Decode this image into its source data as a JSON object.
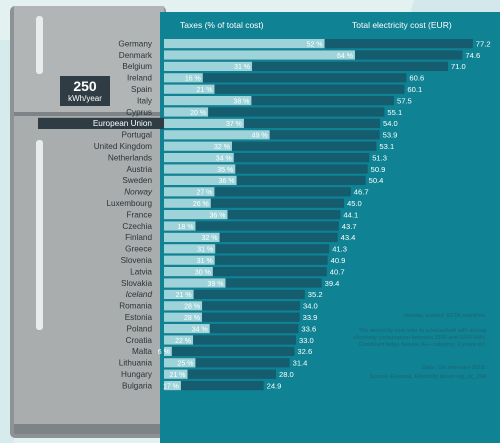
{
  "headers": {
    "taxes": "Taxes (% of total cost)",
    "cost": "Total electricity cost (EUR)"
  },
  "badge": {
    "value": "250",
    "unit": "kWh/year"
  },
  "notes": {
    "efta": "Norway, Iceland: EFTA countries.",
    "explanation": [
      "The electricity cost refer to a household with annual",
      "electricity consumption between 2500 and 5000 kWh.",
      "Combined fridge freezer, A++ category, 3 years old."
    ],
    "data": "Data : 1st semester 2019.",
    "source": "Source: Eurostat, Electricity prices nrg_pc_204"
  },
  "colors": {
    "background": "#e4f1f1",
    "panel": "#0f8293",
    "cost_bar": "#145c6e",
    "tax_bar": "#9fd3da",
    "fridge": "#a9adae",
    "highlight_row": "#2f3c43"
  },
  "chart_data": {
    "type": "bar",
    "orientation": "horizontal",
    "categories": [
      "Germany",
      "Denmark",
      "Belgium",
      "Ireland",
      "Spain",
      "Italy",
      "Cyprus",
      "European Union",
      "Portugal",
      "United Kingdom",
      "Netherlands",
      "Austria",
      "Sweden",
      "Norway",
      "Luxembourg",
      "France",
      "Czechia",
      "Finland",
      "Greece",
      "Slovenia",
      "Latvia",
      "Slovakia",
      "Iceland",
      "Romania",
      "Estonia",
      "Poland",
      "Croatia",
      "Malta",
      "Lithuania",
      "Hungary",
      "Bulgaria"
    ],
    "highlight": [
      "European Union"
    ],
    "italic": [
      "Norway",
      "Iceland"
    ],
    "series": [
      {
        "name": "Total electricity cost (EUR)",
        "values": [
          77.2,
          74.6,
          71.0,
          60.6,
          60.1,
          57.5,
          55.1,
          54.0,
          53.9,
          53.1,
          51.3,
          50.9,
          50.4,
          46.7,
          45.0,
          44.1,
          43.7,
          43.4,
          41.3,
          40.9,
          40.7,
          39.4,
          35.2,
          34.0,
          33.9,
          33.6,
          33.0,
          32.6,
          31.4,
          28.0,
          24.9
        ],
        "labels": [
          "77.2",
          "74.6",
          "71.0",
          "60.6",
          "60.1",
          "57.5",
          "55.1",
          "54.0",
          "53.9",
          "53.1",
          "51.3",
          "50.9",
          "50.4",
          "46.7",
          "45.0",
          "44.1",
          "43.7",
          "43.4",
          "41.3",
          "40.9",
          "40.7",
          "39.4",
          "35.2",
          "34.0",
          "33.9",
          "33.6",
          "33.0",
          "32.6",
          "31.4",
          "28.0",
          "24.9"
        ]
      },
      {
        "name": "Taxes (% of total cost)",
        "values": [
          52,
          64,
          31,
          16,
          21,
          38,
          20,
          37,
          49,
          32,
          34,
          35,
          36,
          27,
          26,
          36,
          18,
          32,
          31,
          31,
          30,
          39,
          21,
          28,
          28,
          34,
          22,
          6,
          25,
          21,
          17
        ],
        "labels": [
          "52 %",
          "64 %",
          "31 %",
          "16 %",
          "21 %",
          "38 %",
          "20 %",
          "37 %",
          "49 %",
          "32 %",
          "34 %",
          "35 %",
          "36 %",
          "27 %",
          "26 %",
          "36 %",
          "18 %",
          "32 %",
          "31 %",
          "31 %",
          "30 %",
          "39 %",
          "21 %",
          "28 %",
          "28 %",
          "34 %",
          "22 %",
          "6 %",
          "25 %",
          "21 %",
          "17 %"
        ]
      }
    ],
    "xlim": [
      0,
      80
    ]
  }
}
